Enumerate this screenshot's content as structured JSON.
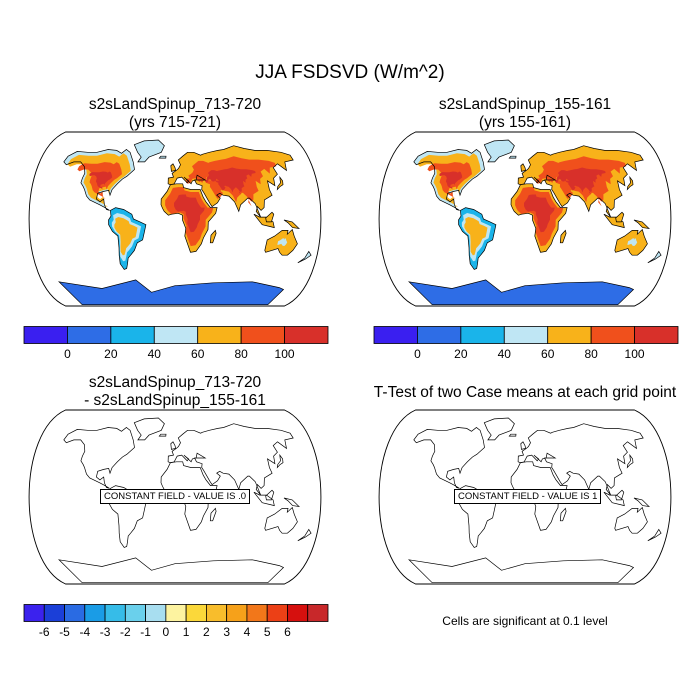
{
  "title": "JJA FSDSVD (W/m^2)",
  "panels": [
    {
      "title_line1": "s2sLandSpinup_713-720",
      "title_line2": "(yrs 715-721)"
    },
    {
      "title_line1": "s2sLandSpinup_155-161",
      "title_line2": "(yrs 155-161)"
    },
    {
      "title_line1": "s2sLandSpinup_713-720",
      "title_line2": "- s2sLandSpinup_155-161",
      "constant_label": "CONSTANT FIELD - VALUE IS .0"
    },
    {
      "title_line1": "T-Test of two Case means at each grid point",
      "constant_label": "CONSTANT FIELD - VALUE IS 1"
    }
  ],
  "colorbar_top": {
    "colors": [
      "#3a1ff0",
      "#2e6de6",
      "#1ab4ea",
      "#bfe6f4",
      "#f8b21a",
      "#f0501c",
      "#d8302a"
    ],
    "labels": [
      "0",
      "20",
      "40",
      "60",
      "80",
      "100"
    ]
  },
  "colorbar_bottom": {
    "colors": [
      "#3b22ee",
      "#1b3fd8",
      "#2a6be3",
      "#1a9ce6",
      "#36bce8",
      "#6ad0ec",
      "#a8def0",
      "#fdf3a0",
      "#fbd83a",
      "#f8bd2c",
      "#f6a11a",
      "#f2771a",
      "#ec4016",
      "#d6100e",
      "#c8282a"
    ],
    "labels": [
      "-6",
      "-5",
      "-4",
      "-3",
      "-2",
      "-1",
      "0",
      "1",
      "2",
      "3",
      "4",
      "5",
      "6"
    ]
  },
  "significance_note": "Cells are significant at 0.1 level",
  "chart_data": [
    {
      "type": "heatmap",
      "title": "s2sLandSpinup_713-720 (yrs 715-721)",
      "levels": [
        0,
        20,
        40,
        60,
        80,
        100
      ]
    },
    {
      "type": "heatmap",
      "title": "s2sLandSpinup_155-161 (yrs 155-161)",
      "levels": [
        0,
        20,
        40,
        60,
        80,
        100
      ]
    },
    {
      "type": "heatmap",
      "title": "s2sLandSpinup_713-720 - s2sLandSpinup_155-161",
      "constant_value": 0,
      "levels": [
        -6,
        -5,
        -4,
        -3,
        -2,
        -1,
        0,
        1,
        2,
        3,
        4,
        5,
        6
      ]
    },
    {
      "type": "heatmap",
      "title": "T-Test of two Case means at each grid point",
      "constant_value": 1
    }
  ]
}
